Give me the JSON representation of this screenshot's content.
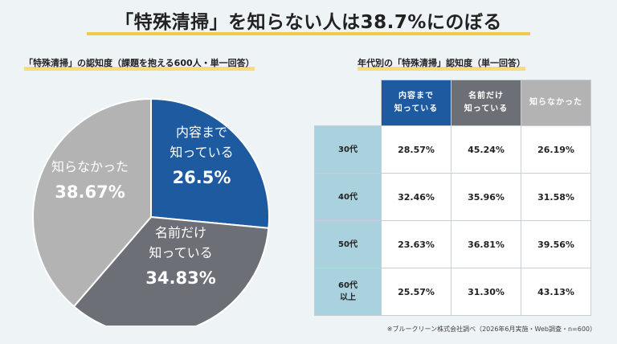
{
  "title": "「特殊清掃」を知らない人は38.7%にのぼる",
  "left_subtitle": "「特殊清掃」の認知度（課題を抱える600人・単一回答）",
  "right_subtitle": "年代別の「特殊清掃」認知度（単一回答）",
  "footer": "※ブルークリーン株式会社調べ（2026年6月実施・Web調査・n=600）",
  "colors": {
    "blue": "#1d5aa0",
    "gray_dark": "#6c7076",
    "gray_light": "#b3b3b3",
    "row_label": "#a9d1de",
    "highlight": "#f2c94c"
  },
  "chart_data": [
    {
      "type": "pie",
      "title": "「特殊清掃」の認知度（課題を抱える600人・単一回答）",
      "slices": [
        {
          "label_lines": [
            "内容まで",
            "知っている"
          ],
          "value": 26.5,
          "display": "26.5%",
          "color": "#1d5aa0"
        },
        {
          "label_lines": [
            "名前だけ",
            "知っている"
          ],
          "value": 34.83,
          "display": "34.83%",
          "color": "#6c7076"
        },
        {
          "label_lines": [
            "知らなかった"
          ],
          "value": 38.67,
          "display": "38.67%",
          "color": "#b3b3b3"
        }
      ]
    },
    {
      "type": "table",
      "title": "年代別の「特殊清掃」認知度（単一回答）",
      "columns": [
        {
          "lines": [
            "内容まで",
            "知っている"
          ],
          "color": "#1d5aa0"
        },
        {
          "lines": [
            "名前だけ",
            "知っている"
          ],
          "color": "#6c7076"
        },
        {
          "lines": [
            "知らなかった"
          ],
          "color": "#b3b3b3"
        }
      ],
      "rows": [
        {
          "label_lines": [
            "30代"
          ],
          "values": [
            "28.57%",
            "45.24%",
            "26.19%"
          ]
        },
        {
          "label_lines": [
            "40代"
          ],
          "values": [
            "32.46%",
            "35.96%",
            "31.58%"
          ]
        },
        {
          "label_lines": [
            "50代"
          ],
          "values": [
            "23.63%",
            "36.81%",
            "39.56%"
          ]
        },
        {
          "label_lines": [
            "60代",
            "以上"
          ],
          "values": [
            "25.57%",
            "31.30%",
            "43.13%"
          ]
        }
      ]
    }
  ]
}
